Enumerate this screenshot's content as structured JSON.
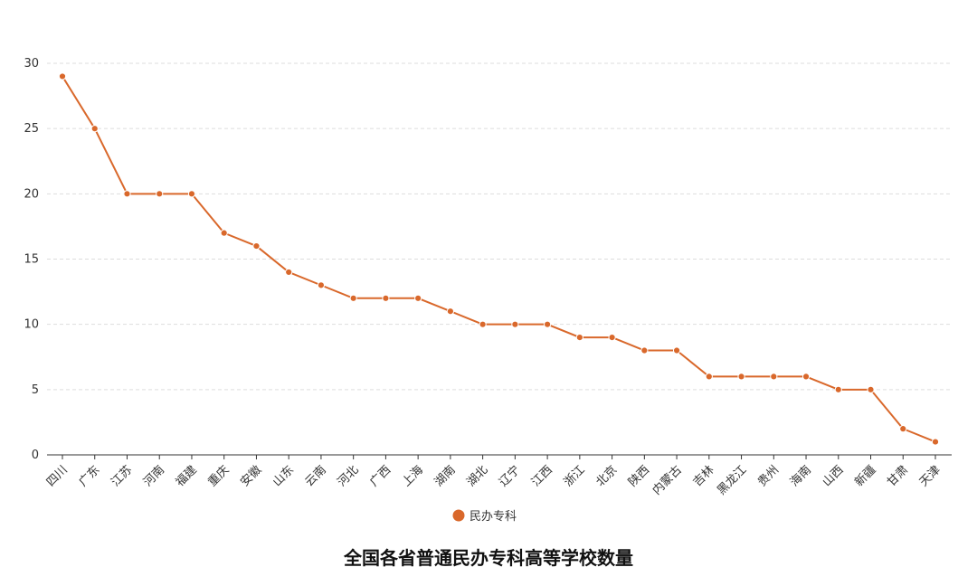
{
  "chart_data": {
    "type": "line",
    "title": "全国各省普通民办专科高等学校数量",
    "xlabel": "",
    "ylabel": "",
    "ylim": [
      0,
      30
    ],
    "yticks": [
      0,
      5,
      10,
      15,
      20,
      25,
      30
    ],
    "grid": true,
    "legend_position": "bottom",
    "categories": [
      "四川",
      "广东",
      "江苏",
      "河南",
      "福建",
      "重庆",
      "安徽",
      "山东",
      "云南",
      "河北",
      "广西",
      "上海",
      "湖南",
      "湖北",
      "辽宁",
      "江西",
      "浙江",
      "北京",
      "陕西",
      "内蒙古",
      "吉林",
      "黑龙江",
      "贵州",
      "海南",
      "山西",
      "新疆",
      "甘肃",
      "天津"
    ],
    "series": [
      {
        "name": "民办专科",
        "color": "#d9682b",
        "values": [
          29,
          25,
          20,
          20,
          20,
          17,
          16,
          14,
          13,
          12,
          12,
          12,
          11,
          10,
          10,
          10,
          9,
          9,
          8,
          8,
          6,
          6,
          6,
          6,
          5,
          5,
          2,
          1
        ]
      }
    ]
  }
}
